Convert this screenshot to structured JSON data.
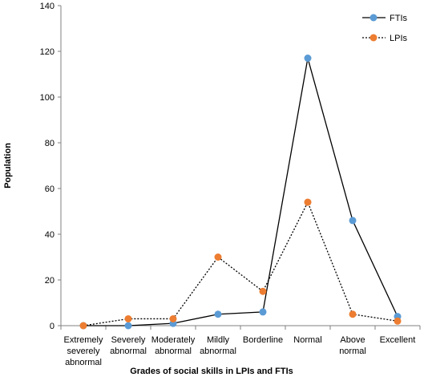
{
  "chart_data": {
    "type": "line",
    "title": "",
    "xlabel": "Grades of social skills in LPIs and FTIs",
    "ylabel": "Population",
    "ylim": [
      0,
      140
    ],
    "yticks": [
      0,
      20,
      40,
      60,
      80,
      100,
      120,
      140
    ],
    "grid": false,
    "legend_position": "top-right",
    "categories": [
      [
        "Extremely",
        "severely",
        "abnormal"
      ],
      [
        "Severely",
        "abnormal"
      ],
      [
        "Moderately",
        "abnormal"
      ],
      [
        "Mildly",
        "abnormal"
      ],
      [
        "Borderline"
      ],
      [
        "Normal"
      ],
      [
        "Above",
        "normal"
      ],
      [
        "Excellent"
      ]
    ],
    "series": [
      {
        "name": "FTIs",
        "values": [
          0,
          0,
          1,
          5,
          6,
          117,
          46,
          4
        ],
        "marker_color": "#5b9bd5",
        "line_color": "#000000",
        "line_style": "solid"
      },
      {
        "name": "LPIs",
        "values": [
          0,
          3,
          3,
          30,
          15,
          54,
          5,
          2
        ],
        "marker_color": "#ed7d31",
        "line_color": "#000000",
        "line_style": "dotted"
      }
    ]
  }
}
